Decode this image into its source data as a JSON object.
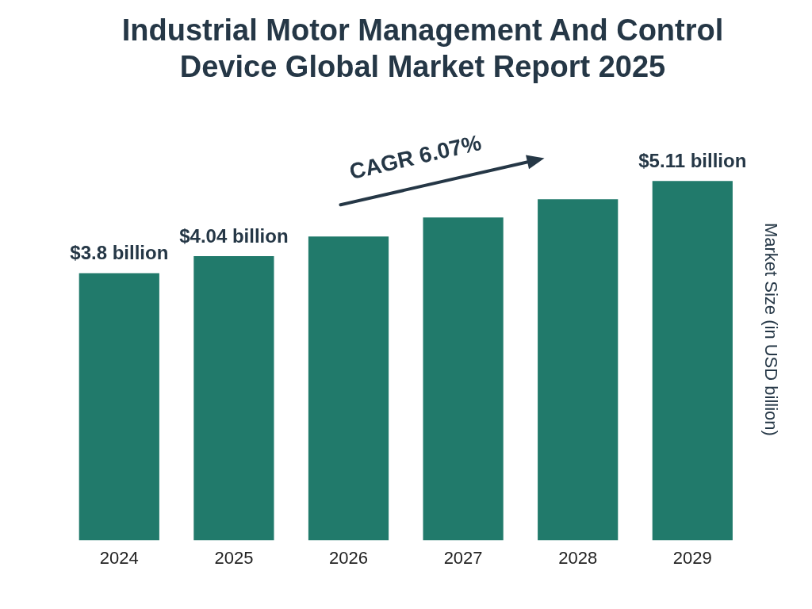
{
  "chart_data": {
    "type": "bar",
    "title": "Industrial Motor Management And Control Device Global Market Report 2025",
    "categories": [
      "2024",
      "2025",
      "2026",
      "2027",
      "2028",
      "2029"
    ],
    "values": [
      3.8,
      4.04,
      4.32,
      4.59,
      4.85,
      5.11
    ],
    "value_labels": [
      "$3.8 billion",
      "$4.04 billion",
      null,
      null,
      null,
      "$5.11 billion"
    ],
    "color": "#217a6b",
    "ylabel": "Market Size (in USD billion)",
    "annotations": [
      "CAGR 6.07%"
    ],
    "grid": false,
    "legend": false
  }
}
